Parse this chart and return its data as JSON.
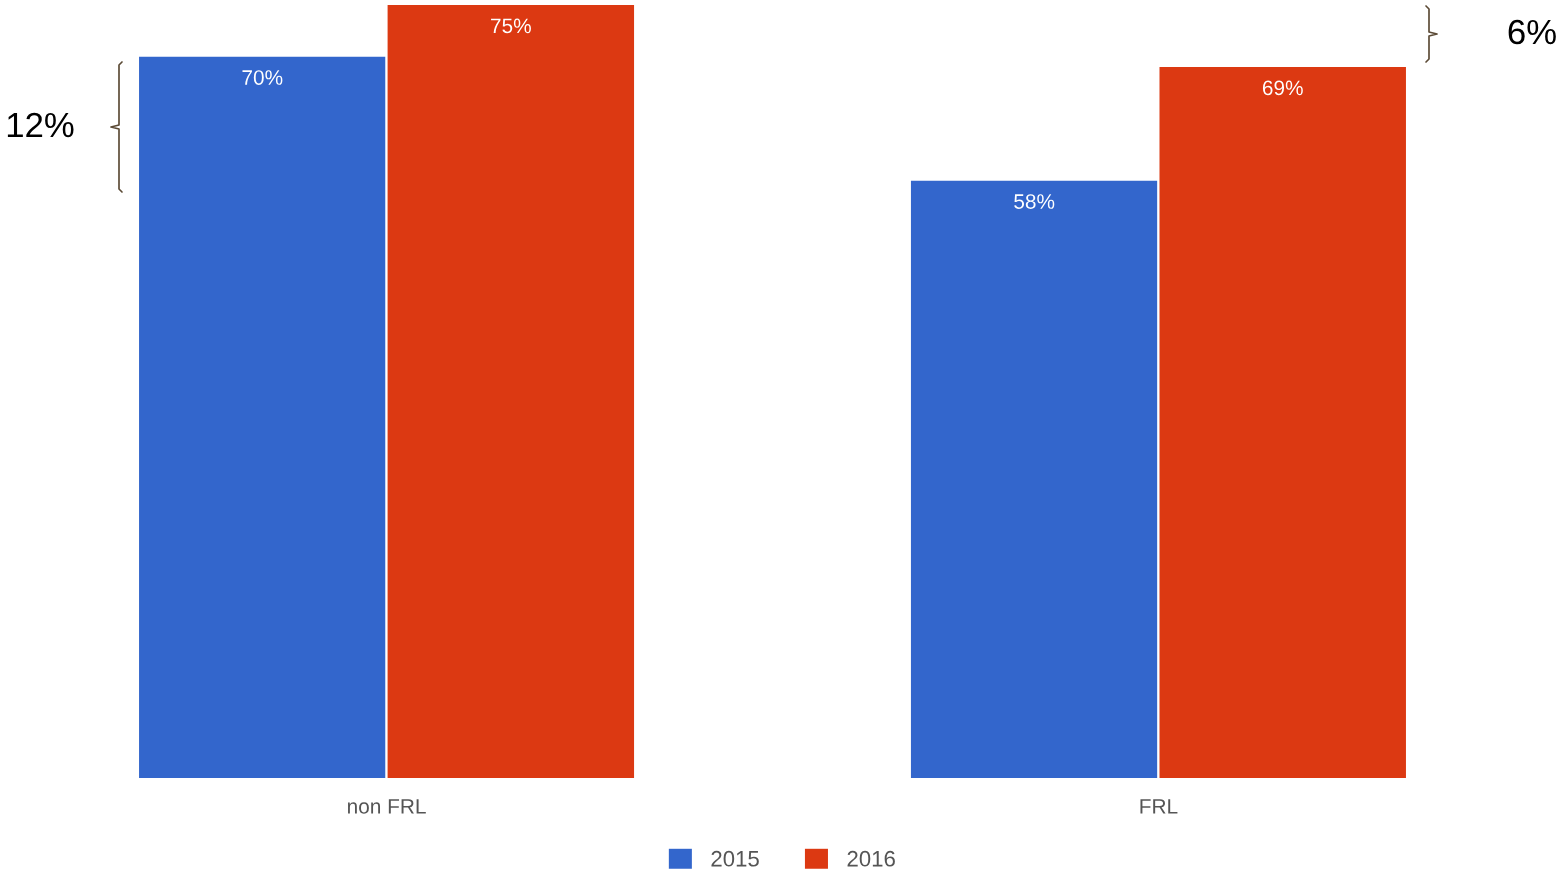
{
  "chart_data": {
    "type": "bar",
    "categories": [
      "non FRL",
      "FRL"
    ],
    "series": [
      {
        "name": "2015",
        "color": "#3366cc",
        "values": [
          70,
          58
        ],
        "value_labels": [
          "70%",
          "58%"
        ]
      },
      {
        "name": "2016",
        "color": "#dc3912",
        "values": [
          75,
          69
        ],
        "value_labels": [
          "75%",
          "69%"
        ]
      }
    ],
    "annotations": [
      "12%",
      "6%"
    ],
    "legend": "bottom",
    "grid": false
  }
}
